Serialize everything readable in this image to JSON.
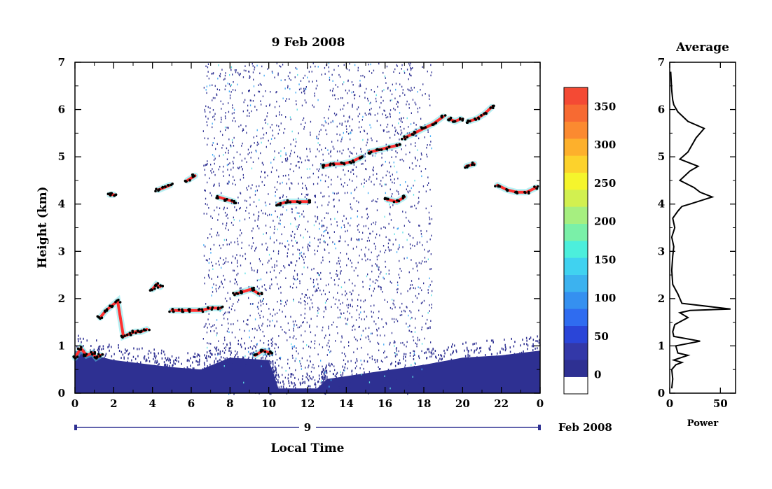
{
  "title": "9 Feb 2008",
  "ylabel": "Height (km)",
  "xlabel": "Local Time",
  "date_strip": {
    "day_label": "9",
    "month_label": "Feb 2008"
  },
  "colors": {
    "background": "#ffffff",
    "noise": "#2e3092",
    "echo_blue": "#3fa9f5",
    "echo_cyan": "#5ee0e6",
    "peak_red": "#ff3030",
    "peak_black": "#000000"
  },
  "chart_data": [
    {
      "type": "heatmap",
      "title": "9 Feb 2008",
      "xlabel": "Local Time",
      "ylabel": "Height (km)",
      "xlim": [
        0,
        24
      ],
      "ylim": [
        0,
        7
      ],
      "x_tick_labels": [
        "0",
        "2",
        "4",
        "6",
        "8",
        "10",
        "12",
        "14",
        "16",
        "18",
        "20",
        "22",
        "0"
      ],
      "y_tick_labels": [
        "0",
        "1",
        "2",
        "3",
        "4",
        "5",
        "6",
        "7"
      ],
      "colorbar": {
        "tick_labels": [
          "0",
          "50",
          "100",
          "150",
          "200",
          "250",
          "300",
          "350"
        ],
        "range": [
          -25,
          375
        ],
        "colors": [
          "#ffffff",
          "#2e3092",
          "#3338a8",
          "#2a45d8",
          "#2f6cf0",
          "#3590f0",
          "#3cb2ef",
          "#40d2f0",
          "#4cefdc",
          "#7af0a8",
          "#a6ef80",
          "#d2f050",
          "#f5f52c",
          "#fcd22c",
          "#fdb02c",
          "#fb8a30",
          "#f76a32",
          "#f44a34"
        ]
      },
      "noise_region": {
        "x": [
          6.6,
          18.4
        ],
        "y": [
          0,
          7
        ]
      },
      "ground_clutter_top_km": [
        [
          0,
          0.9
        ],
        [
          2,
          0.7
        ],
        [
          4,
          0.6
        ],
        [
          5,
          0.55
        ],
        [
          6.5,
          0.5
        ],
        [
          8,
          0.75
        ],
        [
          10,
          0.7
        ],
        [
          10.5,
          0.1
        ],
        [
          12.5,
          0.1
        ],
        [
          13,
          0.3
        ],
        [
          18,
          0.6
        ],
        [
          20,
          0.75
        ],
        [
          22,
          0.8
        ],
        [
          24,
          0.9
        ]
      ],
      "layers_km": [
        {
          "x": [
            0,
            0.3,
            0.6,
            0.9,
            1.1,
            1.3
          ],
          "y": [
            0.75,
            0.95,
            0.8,
            0.85,
            0.75,
            0.8
          ]
        },
        {
          "x": [
            1.3,
            1.6,
            1.9,
            2.2,
            2.5,
            2.8,
            3.1,
            3.4,
            3.7
          ],
          "y": [
            1.6,
            1.75,
            1.85,
            1.95,
            1.2,
            1.25,
            1.3,
            1.3,
            1.35
          ]
        },
        {
          "x": [
            4.0,
            4.2,
            4.4
          ],
          "y": [
            2.2,
            2.3,
            2.25
          ]
        },
        {
          "x": [
            5.0,
            5.5,
            6.0,
            6.5,
            7.0,
            7.5
          ],
          "y": [
            1.75,
            1.75,
            1.75,
            1.75,
            1.8,
            1.8
          ]
        },
        {
          "x": [
            8.3,
            8.7,
            9.1,
            9.5
          ],
          "y": [
            2.1,
            2.15,
            2.2,
            2.1
          ]
        },
        {
          "x": [
            9.3,
            9.7,
            10.1
          ],
          "y": [
            0.8,
            0.9,
            0.85
          ]
        },
        {
          "x": [
            1.8,
            2.0
          ],
          "y": [
            4.2,
            4.2
          ]
        },
        {
          "x": [
            4.3,
            4.6,
            4.9
          ],
          "y": [
            4.3,
            4.35,
            4.4
          ]
        },
        {
          "x": [
            5.8,
            6.2
          ],
          "y": [
            4.5,
            4.6
          ]
        },
        {
          "x": [
            7.4,
            7.8,
            8.2
          ],
          "y": [
            4.15,
            4.1,
            4.05
          ]
        },
        {
          "x": [
            10.5,
            11.0,
            11.5,
            12.0
          ],
          "y": [
            4.0,
            4.05,
            4.05,
            4.05
          ]
        },
        {
          "x": [
            12.8,
            13.3,
            13.8,
            14.3,
            14.8
          ],
          "y": [
            4.8,
            4.85,
            4.85,
            4.9,
            5.0
          ]
        },
        {
          "x": [
            15.2,
            15.7,
            16.2,
            16.7
          ],
          "y": [
            5.1,
            5.15,
            5.2,
            5.25
          ]
        },
        {
          "x": [
            17.0,
            17.5,
            18.0,
            18.5,
            19.0
          ],
          "y": [
            5.4,
            5.5,
            5.6,
            5.7,
            5.85
          ]
        },
        {
          "x": [
            16.1,
            16.6,
            17.0
          ],
          "y": [
            4.1,
            4.05,
            4.15
          ]
        },
        {
          "x": [
            19.3,
            19.6,
            19.9
          ],
          "y": [
            5.8,
            5.75,
            5.8
          ]
        },
        {
          "x": [
            20.3,
            20.7,
            21.1,
            21.5
          ],
          "y": [
            5.75,
            5.8,
            5.9,
            6.05
          ]
        },
        {
          "x": [
            20.2,
            20.6
          ],
          "y": [
            4.8,
            4.85
          ]
        },
        {
          "x": [
            21.8,
            22.3,
            22.8,
            23.3,
            23.8
          ],
          "y": [
            4.4,
            4.3,
            4.25,
            4.25,
            4.35
          ]
        }
      ]
    },
    {
      "type": "line",
      "title": "Average",
      "xlabel": "Power",
      "ylabel": "",
      "xlim": [
        0,
        65
      ],
      "ylim": [
        0,
        7
      ],
      "x_tick_labels": [
        "0",
        "50"
      ],
      "y_tick_labels": [
        "0",
        "1",
        "2",
        "3",
        "4",
        "5",
        "6",
        "7"
      ],
      "series": [
        {
          "x": [
            2,
            3,
            2,
            6,
            12,
            4,
            18,
            8,
            6,
            30,
            4,
            3,
            5,
            18,
            10,
            20,
            60,
            12,
            8,
            3,
            2,
            3,
            4,
            2,
            5,
            3,
            8,
            12,
            20,
            42,
            30,
            24,
            10,
            20,
            28,
            10,
            18,
            26,
            34,
            18,
            8,
            4,
            3,
            2,
            1
          ],
          "y": [
            0.1,
            0.3,
            0.5,
            0.6,
            0.65,
            0.7,
            0.8,
            0.85,
            1.0,
            1.1,
            1.2,
            1.3,
            1.45,
            1.6,
            1.7,
            1.75,
            1.78,
            1.9,
            2.1,
            2.3,
            2.6,
            2.9,
            3.1,
            3.3,
            3.5,
            3.7,
            3.85,
            3.95,
            4.0,
            4.15,
            4.25,
            4.35,
            4.5,
            4.7,
            4.8,
            4.95,
            5.1,
            5.4,
            5.6,
            5.75,
            5.95,
            6.1,
            6.2,
            6.4,
            6.8
          ]
        }
      ]
    }
  ]
}
